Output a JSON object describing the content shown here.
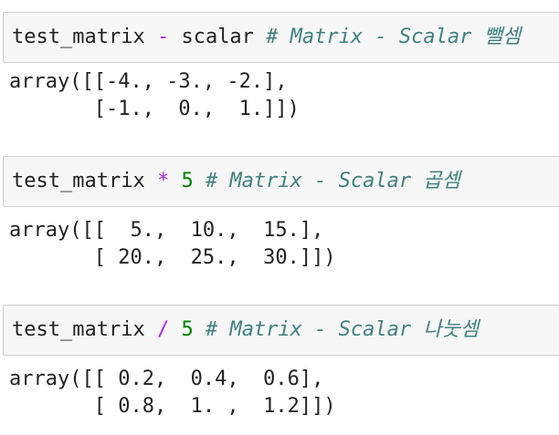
{
  "cells": [
    {
      "code": {
        "var": "test_matrix",
        "op": "-",
        "operand": "scalar",
        "comment": "# Matrix - Scalar 뺄셈"
      },
      "output": [
        "array([[-4., -3., -2.],",
        "       [-1.,  0.,  1.]])"
      ]
    },
    {
      "code": {
        "var": "test_matrix",
        "op": "*",
        "operand": "5",
        "comment": "# Matrix - Scalar 곱셈"
      },
      "output": [
        "array([[  5.,  10.,  15.],",
        "       [ 20.,  25.,  30.]])"
      ]
    },
    {
      "code": {
        "var": "test_matrix",
        "op": "/",
        "operand": "5",
        "comment": "# Matrix - Scalar 나눗셈"
      },
      "output": [
        "array([[ 0.2,  0.4,  0.6],",
        "       [ 0.8,  1. ,  1.2]])"
      ]
    }
  ]
}
